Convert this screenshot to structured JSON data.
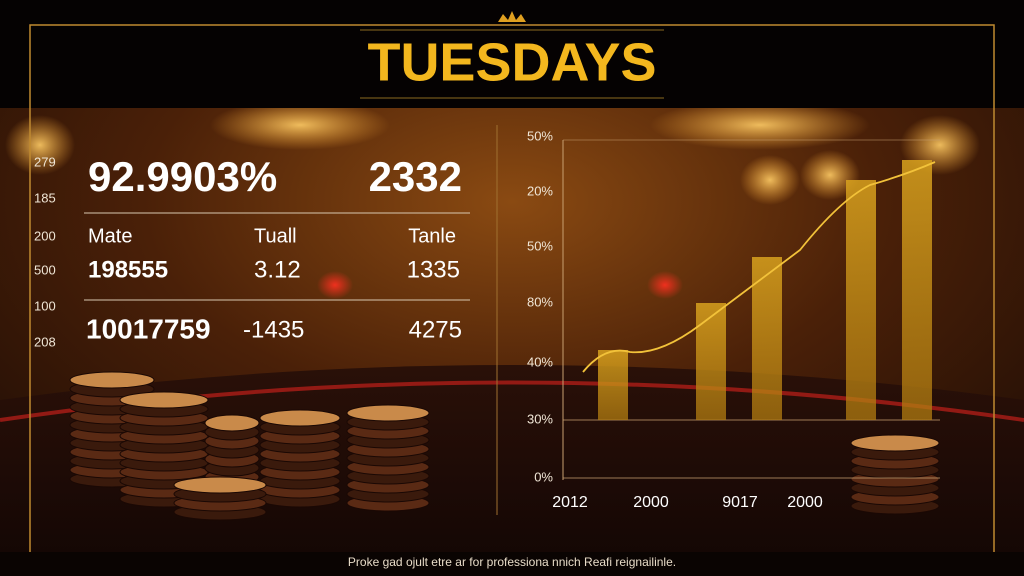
{
  "header": {
    "title": "TUESDAYS"
  },
  "stats": {
    "side_labels": [
      "279",
      "185",
      "200",
      "500",
      "100",
      "208"
    ],
    "headline": [
      "92.9903%",
      "2332"
    ],
    "columns": [
      "Mate",
      "Tuall",
      "Tanle"
    ],
    "rows": [
      [
        "198555",
        "3.12",
        "1335"
      ],
      [
        "10017759",
        "-1435",
        "4275"
      ]
    ]
  },
  "chart": {
    "y_labels": [
      "50%",
      "20%",
      "50%",
      "80%",
      "40%",
      "30%",
      "0%"
    ],
    "x_labels": [
      "2012",
      "2000",
      "9017",
      "2000"
    ]
  },
  "footer": {
    "text": "Proke gad ojult etre ar for professiona nnich Reafi reignailinle."
  }
}
